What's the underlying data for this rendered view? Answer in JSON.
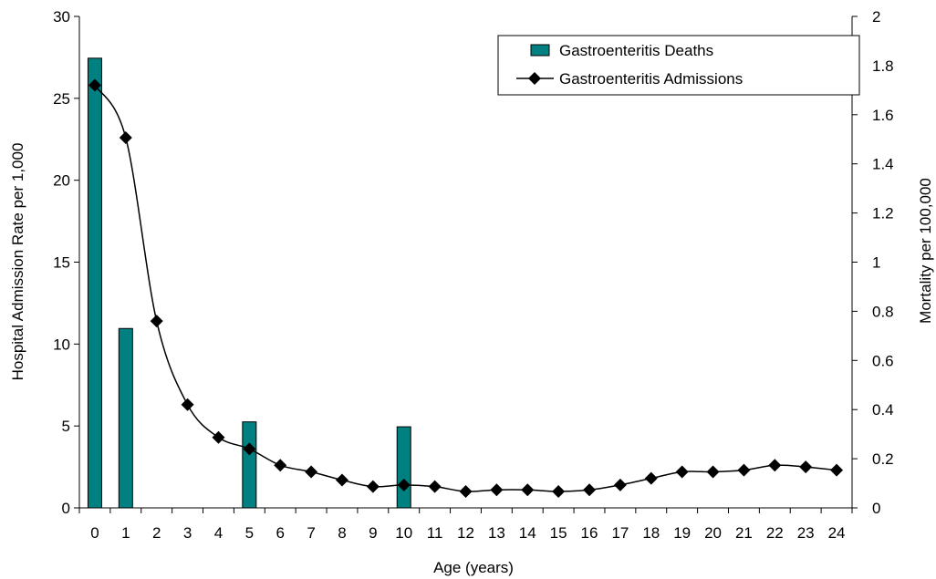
{
  "chart_data": {
    "type": "bar",
    "xlabel": "Age (years)",
    "ylabel_left": "Hospital Admission Rate per 1,000",
    "ylabel_right": "Mortality per 100,000",
    "ylim_left": [
      0,
      30
    ],
    "ylim_right": [
      0,
      2
    ],
    "yticks_left": [
      "0",
      "5",
      "10",
      "15",
      "20",
      "25",
      "30"
    ],
    "yticks_right": [
      "0",
      "0.2",
      "0.4",
      "0.6",
      "0.8",
      "1",
      "1.2",
      "1.4",
      "1.6",
      "1.8",
      "2"
    ],
    "categories": [
      "0",
      "1",
      "2",
      "3",
      "4",
      "5",
      "6",
      "7",
      "8",
      "9",
      "10",
      "11",
      "12",
      "13",
      "14",
      "15",
      "16",
      "17",
      "18",
      "19",
      "20",
      "21",
      "22",
      "23",
      "24"
    ],
    "grid": false,
    "legend_position": "top-right",
    "series": [
      {
        "name": "Gastroenteritis Deaths",
        "type": "bar",
        "axis": "right",
        "color": "#008080",
        "values": [
          1.83,
          0.73,
          0,
          0,
          0,
          0.35,
          0,
          0,
          0,
          0,
          0.33,
          0,
          0,
          0,
          0,
          0,
          0,
          0,
          0,
          0,
          0,
          0,
          0,
          0,
          0
        ]
      },
      {
        "name": "Gastroenteritis Admissions",
        "type": "line",
        "axis": "left",
        "color": "#000000",
        "marker": "diamond",
        "values": [
          25.8,
          22.6,
          11.4,
          6.3,
          4.3,
          3.6,
          2.6,
          2.2,
          1.7,
          1.3,
          1.4,
          1.3,
          1.0,
          1.1,
          1.1,
          1.0,
          1.1,
          1.4,
          1.8,
          2.2,
          2.2,
          2.3,
          2.6,
          2.5,
          2.3
        ]
      }
    ]
  }
}
